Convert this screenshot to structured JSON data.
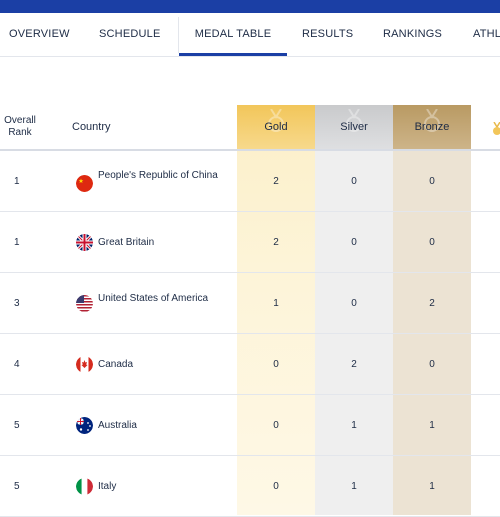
{
  "nav": {
    "tabs": [
      {
        "label": "OVERVIEW",
        "active": false
      },
      {
        "label": "SCHEDULE",
        "active": false
      },
      {
        "label": "MEDAL TABLE",
        "active": true
      },
      {
        "label": "RESULTS",
        "active": false
      },
      {
        "label": "RANKINGS",
        "active": false
      },
      {
        "label": "ATHL",
        "active": false
      }
    ]
  },
  "table": {
    "headers": {
      "rank": "Overall Rank",
      "country": "Country",
      "gold": "Gold",
      "silver": "Silver",
      "bronze": "Bronze"
    },
    "colors": {
      "gold": "#f2c65a",
      "silver": "#c9cacc",
      "bronze": "#b99a63"
    },
    "rows": [
      {
        "rank": "1",
        "country": "People's Republic of China",
        "flag": "china-flag",
        "gold": "2",
        "silver": "0",
        "bronze": "0"
      },
      {
        "rank": "1",
        "country": "Great Britain",
        "flag": "uk-flag",
        "gold": "2",
        "silver": "0",
        "bronze": "0"
      },
      {
        "rank": "3",
        "country": "United States of America",
        "flag": "usa-flag",
        "gold": "1",
        "silver": "0",
        "bronze": "2"
      },
      {
        "rank": "4",
        "country": "Canada",
        "flag": "canada-flag",
        "gold": "0",
        "silver": "2",
        "bronze": "0"
      },
      {
        "rank": "5",
        "country": "Australia",
        "flag": "australia-flag",
        "gold": "0",
        "silver": "1",
        "bronze": "1"
      },
      {
        "rank": "5",
        "country": "Italy",
        "flag": "italy-flag",
        "gold": "0",
        "silver": "1",
        "bronze": "1"
      }
    ]
  }
}
